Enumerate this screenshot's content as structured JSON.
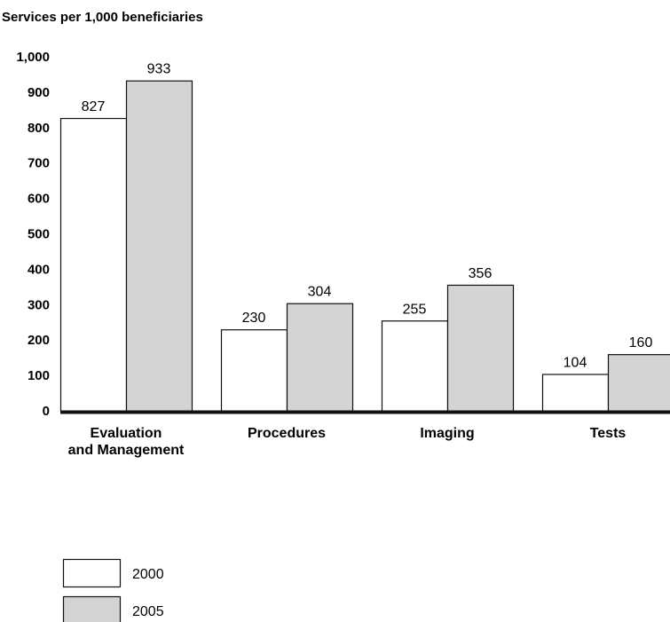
{
  "chart_data": {
    "type": "bar",
    "ylabel": "Services per 1,000 beneficiaries",
    "ylim": [
      0,
      1000
    ],
    "yticks": [
      0,
      100,
      200,
      300,
      400,
      500,
      600,
      700,
      800,
      900,
      1000
    ],
    "ytick_labels": [
      "0",
      "100",
      "200",
      "300",
      "400",
      "500",
      "600",
      "700",
      "800",
      "900",
      "1,000"
    ],
    "categories": [
      [
        "Evaluation",
        "and Management"
      ],
      [
        "Procedures"
      ],
      [
        "Imaging"
      ],
      [
        "Tests"
      ]
    ],
    "series": [
      {
        "name": "2000",
        "values": [
          827,
          230,
          255,
          104
        ],
        "color": "#ffffff"
      },
      {
        "name": "2005",
        "values": [
          933,
          304,
          356,
          160
        ],
        "color": "#d4d4d4"
      }
    ],
    "data_labels": true,
    "grid": false,
    "legend_position": "bottom-left",
    "colors": {
      "bar_stroke": "#111111",
      "axis": "#111111"
    }
  }
}
